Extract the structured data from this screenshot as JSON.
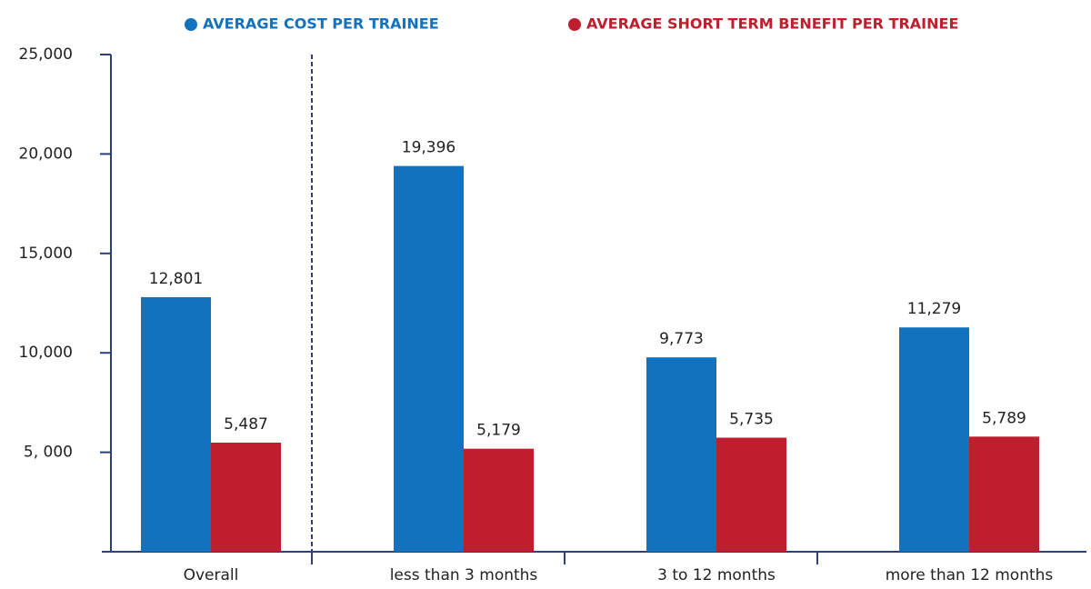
{
  "chart_data": {
    "type": "bar",
    "categories": [
      "Overall",
      "less than 3 months",
      "3 to 12 months",
      "more than 12 months"
    ],
    "series": [
      {
        "name": "AVERAGE COST PER TRAINEE",
        "color": "#1272bd",
        "values": [
          12801,
          19396,
          9773,
          11279
        ],
        "value_labels": [
          "12,801",
          "19,396",
          "9,773",
          "11,279"
        ]
      },
      {
        "name": "AVERAGE SHORT TERM BENEFIT PER TRAINEE",
        "color": "#be1e2d",
        "values": [
          5487,
          5179,
          5735,
          5789
        ],
        "value_labels": [
          "5,487",
          "5,179",
          "5,735",
          "5,789"
        ]
      }
    ],
    "ylim": [
      0,
      25000
    ],
    "yticks": [
      {
        "value": 5000,
        "label": "5, 000"
      },
      {
        "value": 10000,
        "label": "10,000"
      },
      {
        "value": 15000,
        "label": "15,000"
      },
      {
        "value": 20000,
        "label": "20,000"
      },
      {
        "value": 25000,
        "label": "25,000"
      }
    ],
    "legend": "top"
  }
}
